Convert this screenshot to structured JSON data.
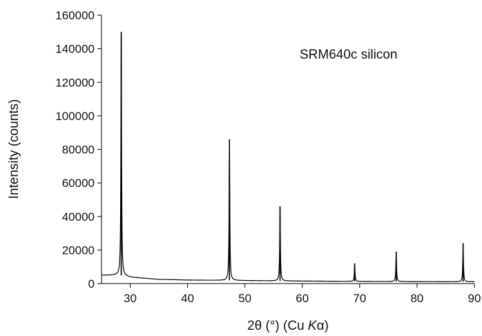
{
  "chart_data": {
    "type": "line",
    "annotation": "SRM640c silicon",
    "xlabel_prefix": "2θ (°) (Cu ",
    "xlabel_k": "K",
    "xlabel_alpha": "α",
    "xlabel_suffix": ")",
    "ylabel": "Intensity (counts)",
    "xlim": [
      25,
      90
    ],
    "ylim": [
      0,
      160000
    ],
    "xticks": [
      "30",
      "40",
      "50",
      "60",
      "70",
      "80",
      "90"
    ],
    "yticks": [
      "0",
      "20000",
      "40000",
      "60000",
      "80000",
      "100000",
      "120000",
      "140000",
      "160000"
    ],
    "grid": false,
    "legend": "none",
    "background_level": [
      {
        "x": 25,
        "y": 5000
      },
      {
        "x": 28.2,
        "y": 5000
      },
      {
        "x": 30,
        "y": 3800
      },
      {
        "x": 35,
        "y": 2500
      },
      {
        "x": 40,
        "y": 2100
      },
      {
        "x": 47,
        "y": 1900
      },
      {
        "x": 50,
        "y": 1800
      },
      {
        "x": 56,
        "y": 1600
      },
      {
        "x": 60,
        "y": 1500
      },
      {
        "x": 69,
        "y": 1300
      },
      {
        "x": 76,
        "y": 1200
      },
      {
        "x": 88,
        "y": 1100
      },
      {
        "x": 90,
        "y": 1100
      }
    ],
    "peaks": [
      {
        "x": 28.44,
        "y": 150000
      },
      {
        "x": 47.3,
        "y": 86000
      },
      {
        "x": 56.12,
        "y": 46000
      },
      {
        "x": 69.13,
        "y": 12000
      },
      {
        "x": 76.37,
        "y": 19000
      },
      {
        "x": 88.03,
        "y": 24000
      }
    ],
    "series_color": "#000000"
  }
}
